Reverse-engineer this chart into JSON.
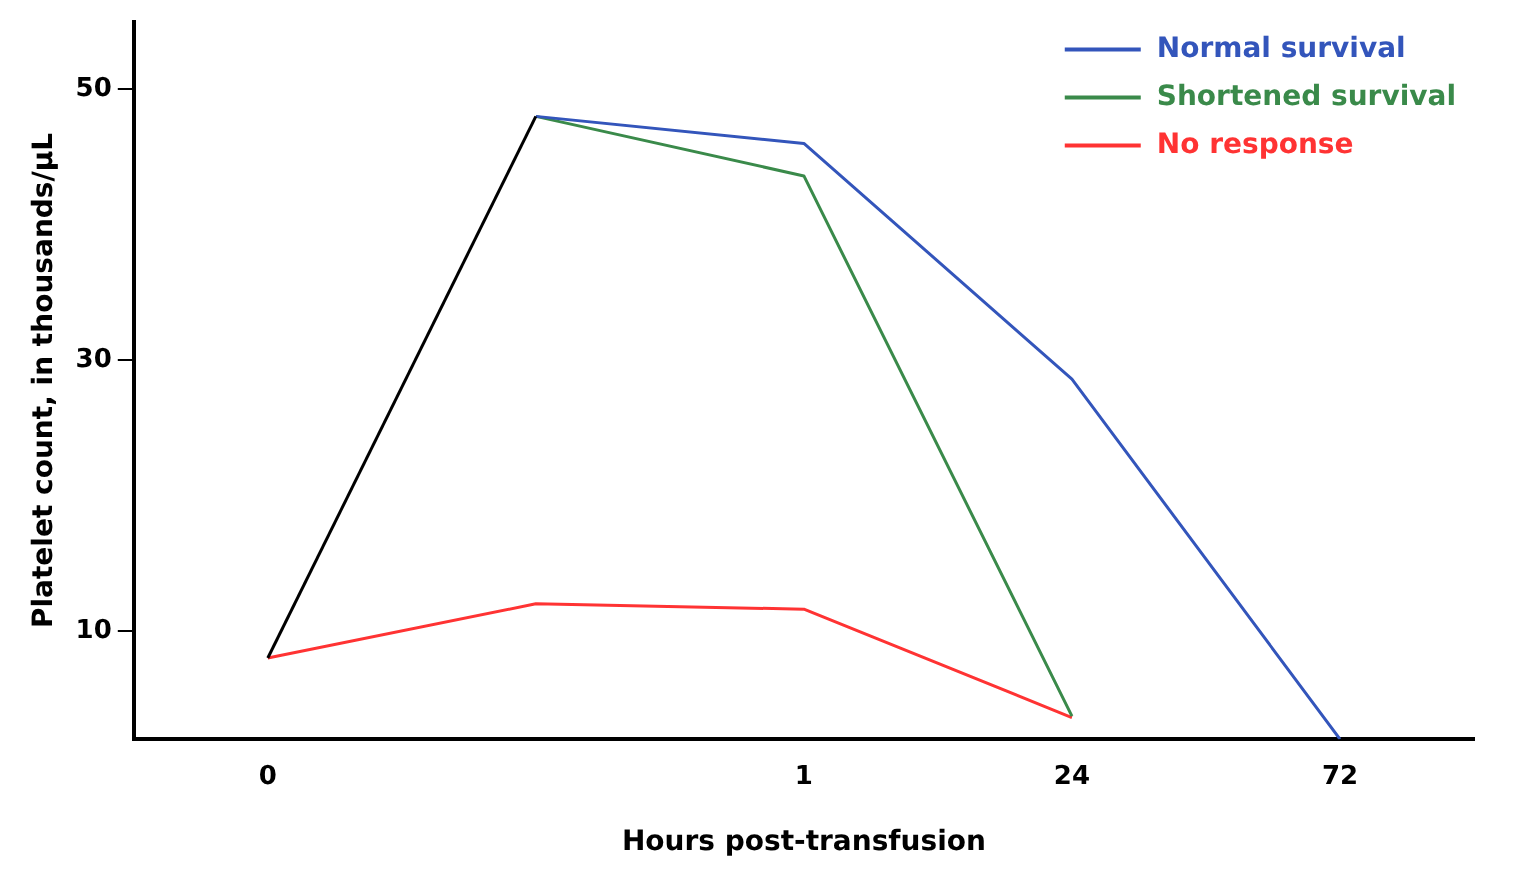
{
  "chart_data": {
    "type": "line",
    "xlabel": "Hours post-transfusion",
    "ylabel": "Platelet count, in thousands/µL",
    "categories": [
      "0",
      null,
      "1",
      "24",
      "72"
    ],
    "ylim": [
      2,
      55
    ],
    "yticks": [
      10,
      30,
      50
    ],
    "grid": false,
    "legend": "top right",
    "marker": "none",
    "series": [
      {
        "color": "#000000",
        "values": [
          8,
          48,
          null,
          null,
          null
        ]
      },
      {
        "name": "Normal survival",
        "color": "#3355bb",
        "values": [
          null,
          48,
          46,
          28.6,
          2
        ]
      },
      {
        "name": "Shortened survival",
        "color": "#3a8a4a",
        "values": [
          null,
          48,
          43.6,
          3.7,
          null
        ]
      },
      {
        "name": "No response",
        "color": "#ff3333",
        "values": [
          8,
          12,
          11.6,
          3.6,
          null
        ]
      }
    ]
  }
}
